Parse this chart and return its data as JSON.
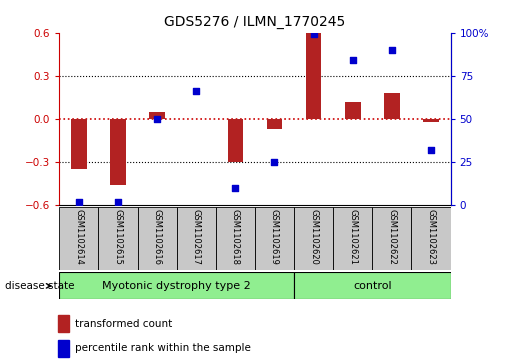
{
  "title": "GDS5276 / ILMN_1770245",
  "samples": [
    "GSM1102614",
    "GSM1102615",
    "GSM1102616",
    "GSM1102617",
    "GSM1102618",
    "GSM1102619",
    "GSM1102620",
    "GSM1102621",
    "GSM1102622",
    "GSM1102623"
  ],
  "transformed_count": [
    -0.35,
    -0.46,
    0.05,
    0.0,
    -0.3,
    -0.07,
    0.6,
    0.12,
    0.18,
    -0.02
  ],
  "percentile_rank": [
    2,
    2,
    50,
    66,
    10,
    25,
    99,
    84,
    90,
    32
  ],
  "groups": [
    {
      "label": "Myotonic dystrophy type 2",
      "start": 0,
      "end": 5
    },
    {
      "label": "control",
      "start": 6,
      "end": 9
    }
  ],
  "ylim_left": [
    -0.6,
    0.6
  ],
  "ylim_right": [
    0,
    100
  ],
  "yticks_left": [
    -0.6,
    -0.3,
    0.0,
    0.3,
    0.6
  ],
  "yticks_right": [
    0,
    25,
    50,
    75,
    100
  ],
  "ytick_labels_right": [
    "0",
    "25",
    "50",
    "75",
    "100%"
  ],
  "bar_color": "#B22222",
  "dot_color": "#0000CD",
  "hline_color": "#CC0000",
  "grid_color": "#000000",
  "sample_box_color": "#C8C8C8",
  "group_color": "#90EE90",
  "disease_state_label": "disease state",
  "legend_bar_label": "transformed count",
  "legend_dot_label": "percentile rank within the sample",
  "bar_width": 0.4
}
